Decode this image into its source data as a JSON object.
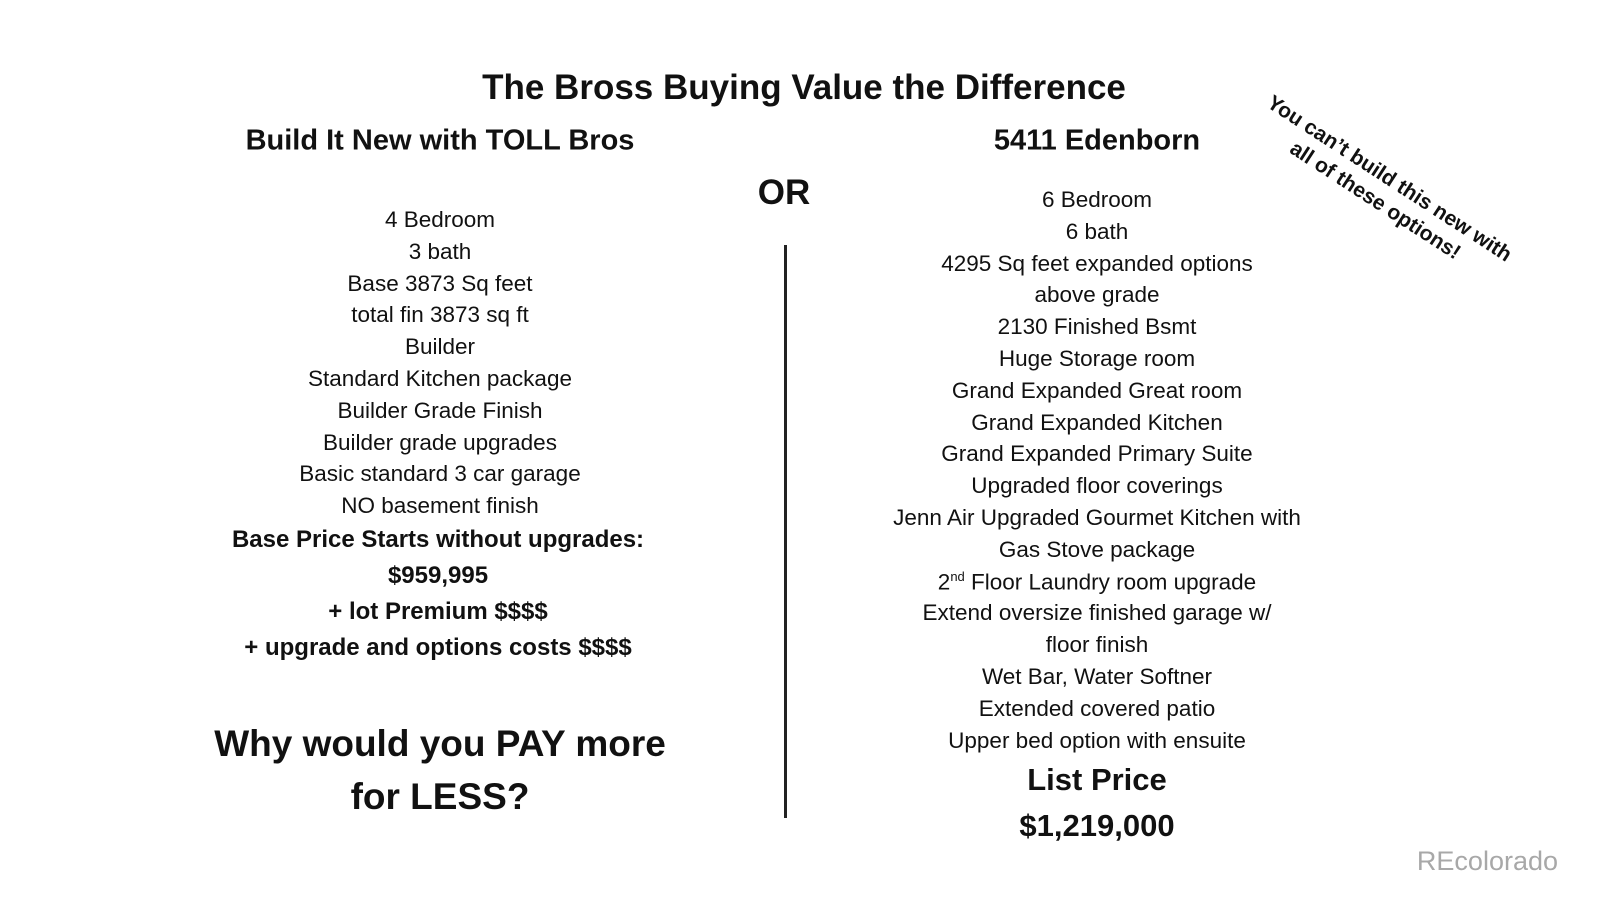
{
  "title": "The Bross Buying Value the Difference",
  "left": {
    "heading": "Build It New  with TOLL Bros",
    "items": [
      "4 Bedroom",
      "3 bath",
      "Base 3873 Sq feet",
      "total fin 3873 sq ft",
      "Builder",
      "Standard Kitchen package",
      "Builder Grade Finish",
      "Builder grade upgrades",
      "Basic standard 3 car garage",
      "NO basement finish"
    ],
    "price_lines": [
      "Base Price Starts without upgrades:",
      "$959,995",
      "+ lot Premium $$$$",
      "+ upgrade and options costs $$$$"
    ],
    "closing": [
      "Why would you PAY more",
      "for LESS?"
    ]
  },
  "divider_label": "OR",
  "right": {
    "heading": "5411 Edenborn",
    "items": [
      "6 Bedroom",
      "6 bath",
      "4295 Sq feet expanded options",
      "above grade",
      "2130 Finished Bsmt",
      "Huge Storage room",
      "Grand Expanded Great room",
      "Grand Expanded Kitchen",
      "Grand Expanded Primary Suite",
      "Upgraded floor coverings",
      "Jenn Air Upgraded Gourmet Kitchen with",
      "Gas  Stove package",
      "2nd Floor Laundry room upgrade",
      "Extend oversize finished garage w/",
      "floor finish",
      "Wet Bar, Water Softner",
      "Extended covered patio",
      "Upper bed option with ensuite"
    ],
    "list_price_label": "List Price",
    "list_price": "$1,219,000"
  },
  "callout": [
    "You can’t build this new with",
    "all of these options!"
  ],
  "watermark": "REcolorado"
}
